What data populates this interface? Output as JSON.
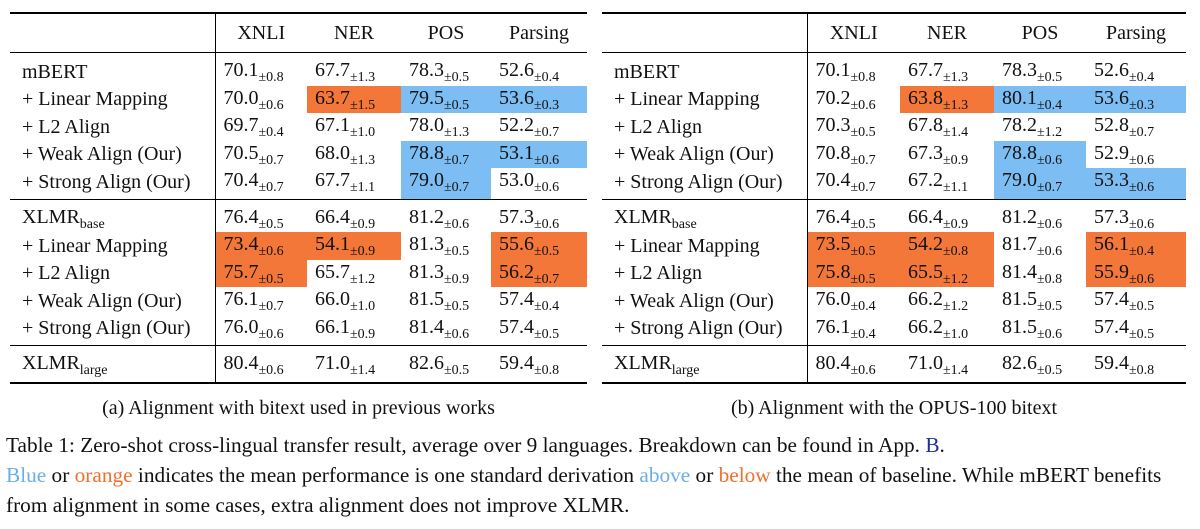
{
  "columns": [
    "XNLI",
    "NER",
    "POS",
    "Parsing"
  ],
  "colors": {
    "blue_highlight": "#7cbef3",
    "orange_highlight": "#f4773a"
  },
  "panel_a": {
    "caption": "(a) Alignment with bitext used in previous works",
    "groups": [
      [
        {
          "name": "mBERT",
          "cells": [
            {
              "v": "70.1",
              "sd": "±0.8"
            },
            {
              "v": "67.7",
              "sd": "±1.3"
            },
            {
              "v": "78.3",
              "sd": "±0.5"
            },
            {
              "v": "52.6",
              "sd": "±0.4"
            }
          ]
        },
        {
          "name": "+ Linear Mapping",
          "cells": [
            {
              "v": "70.0",
              "sd": "±0.6"
            },
            {
              "v": "63.7",
              "sd": "±1.5",
              "hl": "orange"
            },
            {
              "v": "79.5",
              "sd": "±0.5",
              "hl": "blue"
            },
            {
              "v": "53.6",
              "sd": "±0.3",
              "hl": "blue"
            }
          ]
        },
        {
          "name": "+ L2 Align",
          "cells": [
            {
              "v": "69.7",
              "sd": "±0.4"
            },
            {
              "v": "67.1",
              "sd": "±1.0"
            },
            {
              "v": "78.0",
              "sd": "±1.3"
            },
            {
              "v": "52.2",
              "sd": "±0.7"
            }
          ]
        },
        {
          "name": "+ Weak Align (Our)",
          "cells": [
            {
              "v": "70.5",
              "sd": "±0.7"
            },
            {
              "v": "68.0",
              "sd": "±1.3"
            },
            {
              "v": "78.8",
              "sd": "±0.7",
              "hl": "blue"
            },
            {
              "v": "53.1",
              "sd": "±0.6",
              "hl": "blue"
            }
          ]
        },
        {
          "name": "+ Strong Align (Our)",
          "cells": [
            {
              "v": "70.4",
              "sd": "±0.7"
            },
            {
              "v": "67.7",
              "sd": "±1.1"
            },
            {
              "v": "79.0",
              "sd": "±0.7",
              "hl": "blue"
            },
            {
              "v": "53.0",
              "sd": "±0.6"
            }
          ]
        }
      ],
      [
        {
          "name": "XLMR",
          "sub": "base",
          "cells": [
            {
              "v": "76.4",
              "sd": "±0.5"
            },
            {
              "v": "66.4",
              "sd": "±0.9"
            },
            {
              "v": "81.2",
              "sd": "±0.6"
            },
            {
              "v": "57.3",
              "sd": "±0.6"
            }
          ]
        },
        {
          "name": "+ Linear Mapping",
          "cells": [
            {
              "v": "73.4",
              "sd": "±0.6",
              "hl": "orange"
            },
            {
              "v": "54.1",
              "sd": "±0.9",
              "hl": "orange"
            },
            {
              "v": "81.3",
              "sd": "±0.5"
            },
            {
              "v": "55.6",
              "sd": "±0.5",
              "hl": "orange"
            }
          ]
        },
        {
          "name": "+ L2 Align",
          "cells": [
            {
              "v": "75.7",
              "sd": "±0.5",
              "hl": "orange"
            },
            {
              "v": "65.7",
              "sd": "±1.2"
            },
            {
              "v": "81.3",
              "sd": "±0.9"
            },
            {
              "v": "56.2",
              "sd": "±0.7",
              "hl": "orange"
            }
          ]
        },
        {
          "name": "+ Weak Align (Our)",
          "cells": [
            {
              "v": "76.1",
              "sd": "±0.7"
            },
            {
              "v": "66.0",
              "sd": "±1.0"
            },
            {
              "v": "81.5",
              "sd": "±0.5"
            },
            {
              "v": "57.4",
              "sd": "±0.4"
            }
          ]
        },
        {
          "name": "+ Strong Align (Our)",
          "cells": [
            {
              "v": "76.0",
              "sd": "±0.6"
            },
            {
              "v": "66.1",
              "sd": "±0.9"
            },
            {
              "v": "81.4",
              "sd": "±0.6"
            },
            {
              "v": "57.4",
              "sd": "±0.5"
            }
          ]
        }
      ],
      [
        {
          "name": "XLMR",
          "sub": "large",
          "cells": [
            {
              "v": "80.4",
              "sd": "±0.6"
            },
            {
              "v": "71.0",
              "sd": "±1.4"
            },
            {
              "v": "82.6",
              "sd": "±0.5"
            },
            {
              "v": "59.4",
              "sd": "±0.8"
            }
          ]
        }
      ]
    ]
  },
  "panel_b": {
    "caption": "(b) Alignment with the OPUS-100 bitext",
    "groups": [
      [
        {
          "name": "mBERT",
          "cells": [
            {
              "v": "70.1",
              "sd": "±0.8"
            },
            {
              "v": "67.7",
              "sd": "±1.3"
            },
            {
              "v": "78.3",
              "sd": "±0.5"
            },
            {
              "v": "52.6",
              "sd": "±0.4"
            }
          ]
        },
        {
          "name": "+ Linear Mapping",
          "cells": [
            {
              "v": "70.2",
              "sd": "±0.6"
            },
            {
              "v": "63.8",
              "sd": "±1.3",
              "hl": "orange"
            },
            {
              "v": "80.1",
              "sd": "±0.4",
              "hl": "blue"
            },
            {
              "v": "53.6",
              "sd": "±0.3",
              "hl": "blue"
            }
          ]
        },
        {
          "name": "+ L2 Align",
          "cells": [
            {
              "v": "70.3",
              "sd": "±0.5"
            },
            {
              "v": "67.8",
              "sd": "±1.4"
            },
            {
              "v": "78.2",
              "sd": "±1.2"
            },
            {
              "v": "52.8",
              "sd": "±0.7"
            }
          ]
        },
        {
          "name": "+ Weak Align (Our)",
          "cells": [
            {
              "v": "70.8",
              "sd": "±0.7"
            },
            {
              "v": "67.3",
              "sd": "±0.9"
            },
            {
              "v": "78.8",
              "sd": "±0.6",
              "hl": "blue"
            },
            {
              "v": "52.9",
              "sd": "±0.6"
            }
          ]
        },
        {
          "name": "+ Strong Align (Our)",
          "cells": [
            {
              "v": "70.4",
              "sd": "±0.7"
            },
            {
              "v": "67.2",
              "sd": "±1.1"
            },
            {
              "v": "79.0",
              "sd": "±0.7",
              "hl": "blue"
            },
            {
              "v": "53.3",
              "sd": "±0.6",
              "hl": "blue"
            }
          ]
        }
      ],
      [
        {
          "name": "XLMR",
          "sub": "base",
          "cells": [
            {
              "v": "76.4",
              "sd": "±0.5"
            },
            {
              "v": "66.4",
              "sd": "±0.9"
            },
            {
              "v": "81.2",
              "sd": "±0.6"
            },
            {
              "v": "57.3",
              "sd": "±0.6"
            }
          ]
        },
        {
          "name": "+ Linear Mapping",
          "cells": [
            {
              "v": "73.5",
              "sd": "±0.5",
              "hl": "orange"
            },
            {
              "v": "54.2",
              "sd": "±0.8",
              "hl": "orange"
            },
            {
              "v": "81.7",
              "sd": "±0.6"
            },
            {
              "v": "56.1",
              "sd": "±0.4",
              "hl": "orange"
            }
          ]
        },
        {
          "name": "+ L2 Align",
          "cells": [
            {
              "v": "75.8",
              "sd": "±0.5",
              "hl": "orange"
            },
            {
              "v": "65.5",
              "sd": "±1.2",
              "hl": "orange"
            },
            {
              "v": "81.4",
              "sd": "±0.8"
            },
            {
              "v": "55.9",
              "sd": "±0.6",
              "hl": "orange"
            }
          ]
        },
        {
          "name": "+ Weak Align (Our)",
          "cells": [
            {
              "v": "76.0",
              "sd": "±0.4"
            },
            {
              "v": "66.2",
              "sd": "±1.2"
            },
            {
              "v": "81.5",
              "sd": "±0.5"
            },
            {
              "v": "57.4",
              "sd": "±0.5"
            }
          ]
        },
        {
          "name": "+ Strong Align (Our)",
          "cells": [
            {
              "v": "76.1",
              "sd": "±0.4"
            },
            {
              "v": "66.2",
              "sd": "±1.0"
            },
            {
              "v": "81.5",
              "sd": "±0.6"
            },
            {
              "v": "57.4",
              "sd": "±0.5"
            }
          ]
        }
      ],
      [
        {
          "name": "XLMR",
          "sub": "large",
          "cells": [
            {
              "v": "80.4",
              "sd": "±0.6"
            },
            {
              "v": "71.0",
              "sd": "±1.4"
            },
            {
              "v": "82.6",
              "sd": "±0.5"
            },
            {
              "v": "59.4",
              "sd": "±0.8"
            }
          ]
        }
      ]
    ]
  },
  "main_caption": {
    "t1": "Table 1: Zero-shot cross-lingual transfer result, average over 9 languages. Breakdown can be found in App. ",
    "ref": "B",
    "t2": ".",
    "blue_word": "Blue",
    "t3": " or ",
    "orange_word": "orange",
    "t4": " indicates the mean performance is one standard derivation ",
    "above_word": "above",
    "t5": " or ",
    "below_word": "below",
    "t6": " the mean of baseline. While mBERT benefits from alignment in some cases, extra alignment does not improve XLMR."
  }
}
